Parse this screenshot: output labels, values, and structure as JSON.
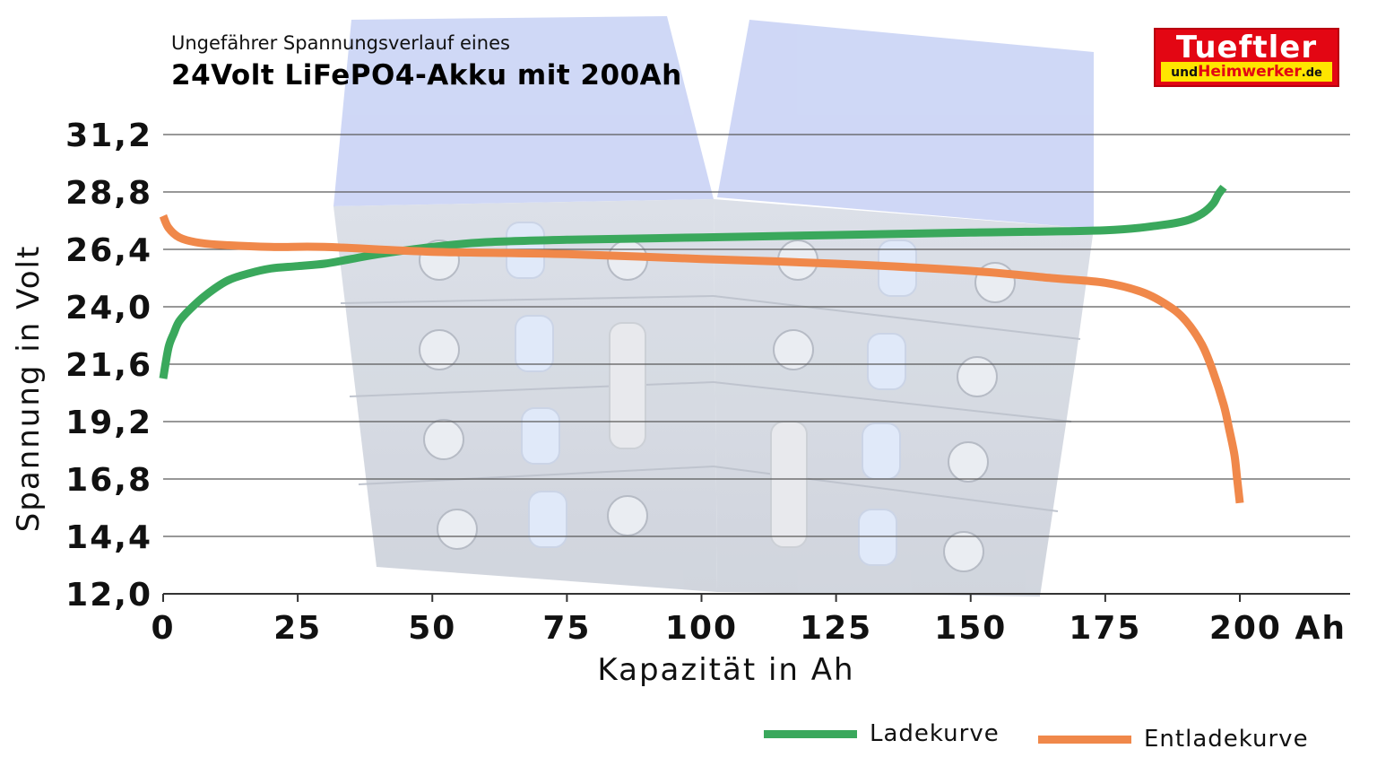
{
  "header": {
    "subtitle": "Ungefährer Spannungsverlauf eines",
    "title": "24Volt LiFePO4-Akku mit 200Ah"
  },
  "logo": {
    "line1": "Tueftler",
    "und": "und",
    "heim": "Heimwerker",
    "de": ".de",
    "colors": {
      "red": "#e30613",
      "yellow": "#ffe500"
    }
  },
  "chart_data": {
    "type": "line",
    "xlabel": "Kapazität in Ah",
    "ylabel": "Spannung in Volt",
    "xlim": [
      0,
      215
    ],
    "ylim": [
      12.0,
      31.2
    ],
    "x_ticks": [
      0,
      25,
      50,
      75,
      100,
      125,
      150,
      175,
      200
    ],
    "x_tick_labels": [
      "0",
      "25",
      "50",
      "75",
      "100",
      "125",
      "150",
      "175",
      "200 Ah"
    ],
    "y_ticks": [
      12.0,
      14.4,
      16.8,
      19.2,
      21.6,
      24.0,
      26.4,
      28.8,
      31.2
    ],
    "y_tick_labels": [
      "12,0",
      "14,4",
      "16,8",
      "19,2",
      "21,6",
      "24,0",
      "26,4",
      "28,8",
      "31,2"
    ],
    "grid": true,
    "legend_position": "bottom-right",
    "series": [
      {
        "name": "Ladekurve",
        "color": "#3aa85c",
        "x": [
          0,
          1,
          2,
          3,
          5,
          8,
          12,
          16,
          20,
          25,
          30,
          35,
          40,
          50,
          60,
          75,
          100,
          125,
          150,
          175,
          185,
          190,
          193,
          195,
          196,
          197
        ],
        "y": [
          21.0,
          22.3,
          22.9,
          23.4,
          23.9,
          24.5,
          25.1,
          25.4,
          25.6,
          25.7,
          25.8,
          26.0,
          26.2,
          26.5,
          26.7,
          26.8,
          26.9,
          27.0,
          27.1,
          27.2,
          27.4,
          27.6,
          27.9,
          28.3,
          28.7,
          29.0
        ]
      },
      {
        "name": "Entladekurve",
        "color": "#f0884a",
        "x": [
          0,
          1,
          3,
          6,
          10,
          20,
          30,
          50,
          75,
          100,
          125,
          150,
          165,
          175,
          182,
          187,
          190,
          193,
          195,
          197,
          198,
          199,
          199.5,
          200
        ],
        "y": [
          27.8,
          27.3,
          26.9,
          26.7,
          26.6,
          26.5,
          26.5,
          26.3,
          26.2,
          26.0,
          25.8,
          25.5,
          25.2,
          25.0,
          24.6,
          24.0,
          23.4,
          22.4,
          21.3,
          19.9,
          18.9,
          17.8,
          16.8,
          15.8
        ]
      }
    ]
  }
}
